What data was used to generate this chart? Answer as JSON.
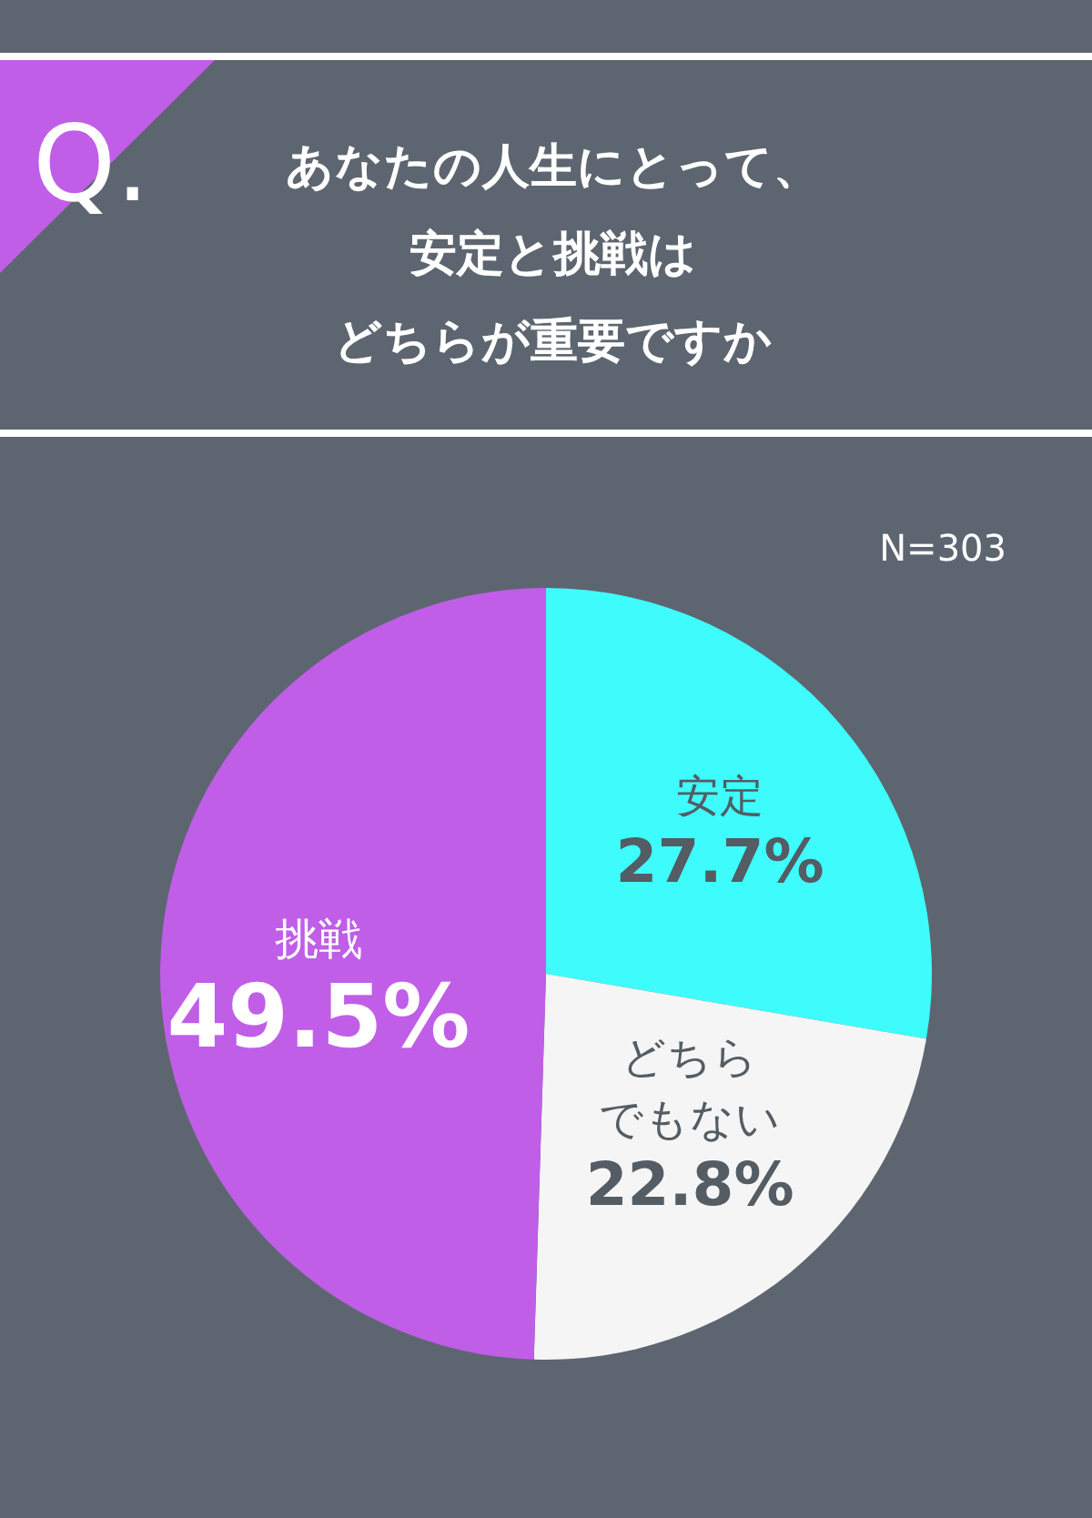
{
  "chart_data": {
    "type": "pie",
    "title": "あなたの人生にとって、安定と挑戦はどちらが重要ですか",
    "categories": [
      "安定",
      "どちらでもない",
      "挑戦"
    ],
    "values": [
      27.7,
      22.8,
      49.5
    ],
    "colors": [
      "#3ffcfc",
      "#f5f5f5",
      "#c05ee8"
    ],
    "value_labels": [
      "27.7%",
      "22.8%",
      "49.5%"
    ],
    "annotations": [
      "Q.",
      "N=303"
    ]
  }
}
